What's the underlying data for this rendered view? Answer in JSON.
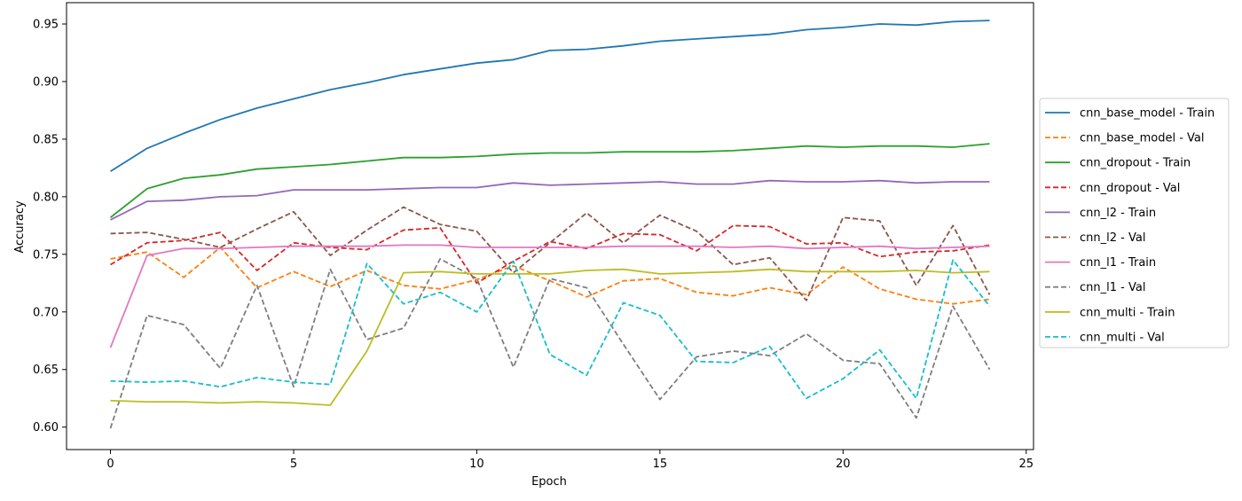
{
  "chart_data": {
    "type": "line",
    "title": "",
    "xlabel": "Epoch",
    "ylabel": "Accuracy",
    "xlim": [
      -1.2,
      25.2
    ],
    "ylim": [
      0.5805,
      0.9685
    ],
    "xticks": [
      0,
      5,
      10,
      15,
      20,
      25
    ],
    "yticks": [
      0.6,
      0.65,
      0.7,
      0.75,
      0.8,
      0.85,
      0.9,
      0.95
    ],
    "xtick_labels": [
      "0",
      "5",
      "10",
      "15",
      "20",
      "25"
    ],
    "ytick_labels": [
      "0.60",
      "0.65",
      "0.70",
      "0.75",
      "0.80",
      "0.85",
      "0.90",
      "0.95"
    ],
    "grid": false,
    "legend_position": "outside-right",
    "x": [
      0,
      1,
      2,
      3,
      4,
      5,
      6,
      7,
      8,
      9,
      10,
      11,
      12,
      13,
      14,
      15,
      16,
      17,
      18,
      19,
      20,
      21,
      22,
      23,
      24
    ],
    "series": [
      {
        "name": "cnn_base_model - Train",
        "color": "#1f77b4",
        "dashed": false,
        "values": [
          0.822,
          0.842,
          0.855,
          0.867,
          0.877,
          0.885,
          0.893,
          0.899,
          0.906,
          0.911,
          0.916,
          0.919,
          0.927,
          0.928,
          0.931,
          0.935,
          0.937,
          0.939,
          0.941,
          0.945,
          0.947,
          0.95,
          0.949,
          0.952,
          0.953
        ]
      },
      {
        "name": "cnn_base_model - Val",
        "color": "#ff7f0e",
        "dashed": true,
        "values": [
          0.746,
          0.752,
          0.73,
          0.756,
          0.721,
          0.735,
          0.722,
          0.736,
          0.723,
          0.72,
          0.728,
          0.74,
          0.727,
          0.713,
          0.727,
          0.729,
          0.717,
          0.714,
          0.721,
          0.715,
          0.739,
          0.72,
          0.711,
          0.707,
          0.711
        ]
      },
      {
        "name": "cnn_dropout - Train",
        "color": "#2ca02c",
        "dashed": false,
        "values": [
          0.782,
          0.807,
          0.816,
          0.819,
          0.824,
          0.826,
          0.828,
          0.831,
          0.834,
          0.834,
          0.835,
          0.837,
          0.838,
          0.838,
          0.839,
          0.839,
          0.839,
          0.84,
          0.842,
          0.844,
          0.843,
          0.844,
          0.844,
          0.843,
          0.846
        ]
      },
      {
        "name": "cnn_dropout - Val",
        "color": "#d62728",
        "dashed": true,
        "values": [
          0.741,
          0.76,
          0.762,
          0.769,
          0.736,
          0.76,
          0.756,
          0.754,
          0.771,
          0.773,
          0.725,
          0.744,
          0.761,
          0.755,
          0.768,
          0.767,
          0.753,
          0.775,
          0.774,
          0.759,
          0.76,
          0.748,
          0.752,
          0.753,
          0.758
        ]
      },
      {
        "name": "cnn_l2 - Train",
        "color": "#9467bd",
        "dashed": false,
        "values": [
          0.78,
          0.796,
          0.797,
          0.8,
          0.801,
          0.806,
          0.806,
          0.806,
          0.807,
          0.808,
          0.808,
          0.812,
          0.81,
          0.811,
          0.812,
          0.813,
          0.811,
          0.811,
          0.814,
          0.813,
          0.813,
          0.814,
          0.812,
          0.813,
          0.813
        ]
      },
      {
        "name": "cnn_l2 - Val",
        "color": "#8c564b",
        "dashed": true,
        "values": [
          0.768,
          0.769,
          0.763,
          0.756,
          0.772,
          0.787,
          0.749,
          0.771,
          0.791,
          0.776,
          0.77,
          0.734,
          0.76,
          0.786,
          0.76,
          0.784,
          0.77,
          0.741,
          0.747,
          0.71,
          0.782,
          0.779,
          0.723,
          0.775,
          0.715
        ]
      },
      {
        "name": "cnn_l1 - Train",
        "color": "#e377c2",
        "dashed": false,
        "values": [
          0.669,
          0.749,
          0.755,
          0.755,
          0.756,
          0.757,
          0.757,
          0.757,
          0.758,
          0.758,
          0.756,
          0.756,
          0.756,
          0.756,
          0.757,
          0.757,
          0.757,
          0.756,
          0.757,
          0.755,
          0.756,
          0.757,
          0.755,
          0.756,
          0.757
        ]
      },
      {
        "name": "cnn_l1 - Val",
        "color": "#7f7f7f",
        "dashed": true,
        "values": [
          0.599,
          0.697,
          0.689,
          0.651,
          0.723,
          0.635,
          0.737,
          0.676,
          0.686,
          0.746,
          0.729,
          0.652,
          0.729,
          0.721,
          0.672,
          0.624,
          0.661,
          0.666,
          0.662,
          0.681,
          0.658,
          0.655,
          0.608,
          0.705,
          0.65
        ]
      },
      {
        "name": "cnn_multi - Train",
        "color": "#bcbd22",
        "dashed": false,
        "values": [
          0.623,
          0.622,
          0.622,
          0.621,
          0.622,
          0.621,
          0.619,
          0.666,
          0.734,
          0.735,
          0.733,
          0.733,
          0.733,
          0.736,
          0.737,
          0.733,
          0.734,
          0.735,
          0.737,
          0.735,
          0.735,
          0.735,
          0.736,
          0.734,
          0.735
        ]
      },
      {
        "name": "cnn_multi - Val",
        "color": "#17becf",
        "dashed": true,
        "values": [
          0.64,
          0.639,
          0.64,
          0.635,
          0.643,
          0.639,
          0.637,
          0.742,
          0.707,
          0.717,
          0.7,
          0.744,
          0.663,
          0.645,
          0.708,
          0.697,
          0.657,
          0.656,
          0.67,
          0.625,
          0.642,
          0.667,
          0.625,
          0.745,
          0.705
        ]
      }
    ]
  }
}
